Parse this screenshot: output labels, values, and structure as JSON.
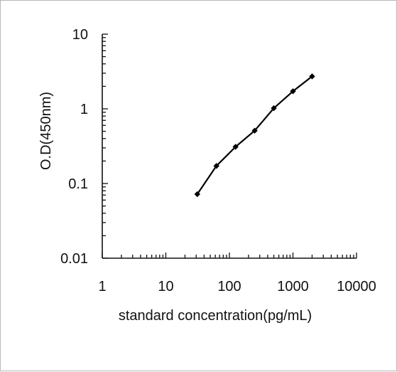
{
  "chart_data": {
    "type": "line",
    "title": "",
    "xlabel": "standard concentration(pg/mL)",
    "ylabel": "O.D(450nm)",
    "xscale": "log",
    "yscale": "log",
    "xlim": [
      1,
      10000
    ],
    "ylim": [
      0.01,
      10
    ],
    "x_tick_labels": [
      "1",
      "10",
      "100",
      "1000",
      "10000"
    ],
    "y_tick_labels": [
      "0.01",
      "0.1",
      "1",
      "10"
    ],
    "grid": false,
    "series": [
      {
        "x": [
          31.25,
          62.5,
          125,
          250,
          500,
          1000,
          2000
        ],
        "y": [
          0.072,
          0.172,
          0.31,
          0.51,
          1.02,
          1.72,
          2.72
        ],
        "marker": "diamond",
        "color": "#000000"
      }
    ]
  }
}
